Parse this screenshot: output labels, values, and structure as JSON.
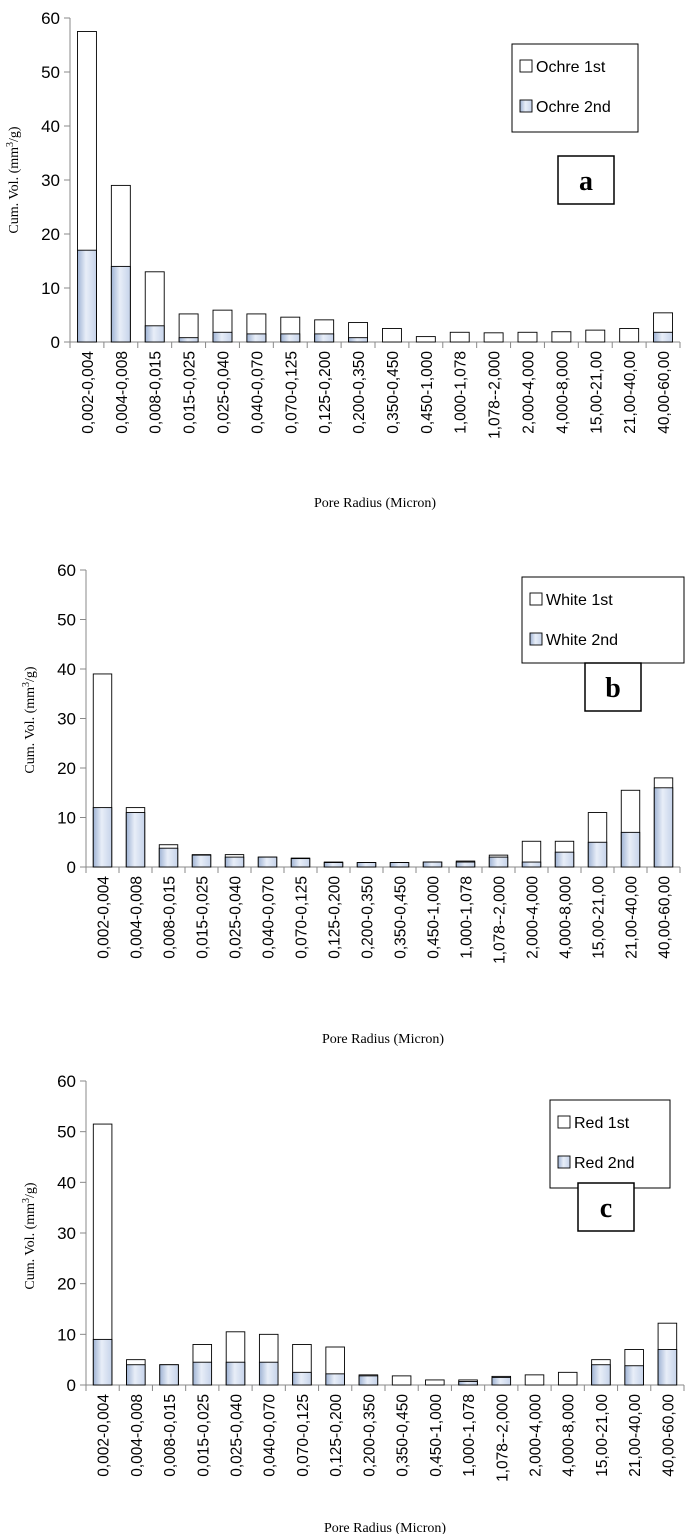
{
  "chart_data": [
    {
      "type": "bar",
      "panel": "a",
      "title": "",
      "xlabel": "Pore Radius (Micron)",
      "ylabel": "Cum. Vol. (mm³/g)",
      "ylim": [
        0,
        60
      ],
      "yticks": [
        0,
        10,
        20,
        30,
        40,
        50,
        60
      ],
      "grid": false,
      "legend_placement": "top-right",
      "categories": [
        "0,002-0,004",
        "0,004-0,008",
        "0,008-0,015",
        "0,015-0,025",
        "0,025-0,040",
        "0,040-0,070",
        "0,070-0,125",
        "0,125-0,200",
        "0,200-0,350",
        "0,350-0,450",
        "0,450-1,000",
        "1,000-1,078",
        "1,078--2,000",
        "2,000-4,000",
        "4,000-8,000",
        "15,00-21,00",
        "21,00-40,00",
        "40,00-60,00"
      ],
      "series": [
        {
          "name": "Ochre 1st",
          "values": [
            57.5,
            29,
            13,
            5.2,
            5.9,
            5.2,
            4.6,
            4.1,
            3.6,
            2.5,
            1,
            1.8,
            1.7,
            1.8,
            1.9,
            2.2,
            2.5,
            5.4
          ]
        },
        {
          "name": "Ochre 2nd",
          "values": [
            17,
            14,
            3,
            0.8,
            1.8,
            1.5,
            1.5,
            1.5,
            0.8,
            0,
            0,
            0,
            0,
            0,
            0,
            0,
            0,
            1.8
          ]
        }
      ]
    },
    {
      "type": "bar",
      "panel": "b",
      "title": "",
      "xlabel": "Pore Radius (Micron)",
      "ylabel": "Cum. Vol. (mm³/g)",
      "ylim": [
        0,
        60
      ],
      "yticks": [
        0,
        10,
        20,
        30,
        40,
        50,
        60
      ],
      "grid": false,
      "legend_placement": "top-right",
      "categories": [
        "0,002-0,004",
        "0,004-0,008",
        "0,008-0,015",
        "0,015-0,025",
        "0,025-0,040",
        "0,040-0,070",
        "0,070-0,125",
        "0,125-0,200",
        "0,200-0,350",
        "0,350-0,450",
        "0,450-1,000",
        "1,000-1,078",
        "1,078--2,000",
        "2,000-4,000",
        "4,000-8,000",
        "15,00-21,00",
        "21,00-40,00",
        "40,00-60,00"
      ],
      "series": [
        {
          "name": "White 1st",
          "values": [
            39,
            12,
            4.5,
            2.5,
            2.5,
            2,
            1.8,
            1,
            0.9,
            0.9,
            1,
            1.2,
            2.4,
            5.2,
            5.2,
            11,
            15.5,
            18
          ]
        },
        {
          "name": "White 2nd",
          "values": [
            12,
            11,
            3.8,
            2.4,
            2,
            2,
            1.7,
            0.9,
            0.9,
            0.9,
            1,
            1,
            2,
            1,
            3,
            5,
            7,
            16
          ]
        }
      ]
    },
    {
      "type": "bar",
      "panel": "c",
      "title": "",
      "xlabel": "Pore Radius (Micron)",
      "ylabel": "Cum. Vol. (mm³/g)",
      "ylim": [
        0,
        60
      ],
      "yticks": [
        0,
        10,
        20,
        30,
        40,
        50,
        60
      ],
      "grid": false,
      "legend_placement": "top-right",
      "categories": [
        "0,002-0,004",
        "0,004-0,008",
        "0,008-0,015",
        "0,015-0,025",
        "0,025-0,040",
        "0,040-0,070",
        "0,070-0,125",
        "0,125-0,200",
        "0,200-0,350",
        "0,350-0,450",
        "0,450-1,000",
        "1,000-1,078",
        "1,078--2,000",
        "2,000-4,000",
        "4,000-8,000",
        "15,00-21,00",
        "21,00-40,00",
        "40,00-60,00"
      ],
      "series": [
        {
          "name": "Red 1st",
          "values": [
            51.5,
            5,
            4,
            8,
            10.5,
            10,
            8,
            7.5,
            2,
            1.8,
            1,
            1,
            1.7,
            2,
            2.5,
            5,
            7,
            12.2
          ]
        },
        {
          "name": "Red 2nd",
          "values": [
            9,
            4,
            4,
            4.5,
            4.5,
            4.5,
            2.5,
            2.2,
            1.8,
            0,
            0,
            0.7,
            1.5,
            0,
            0,
            4,
            3.8,
            7
          ]
        }
      ]
    }
  ],
  "colors": {
    "first_fill": "#ffffff",
    "second_fill_light": "#e8eef8",
    "second_fill_dark": "#9fb3d4",
    "outline": "#000000",
    "axis": "#888888"
  }
}
